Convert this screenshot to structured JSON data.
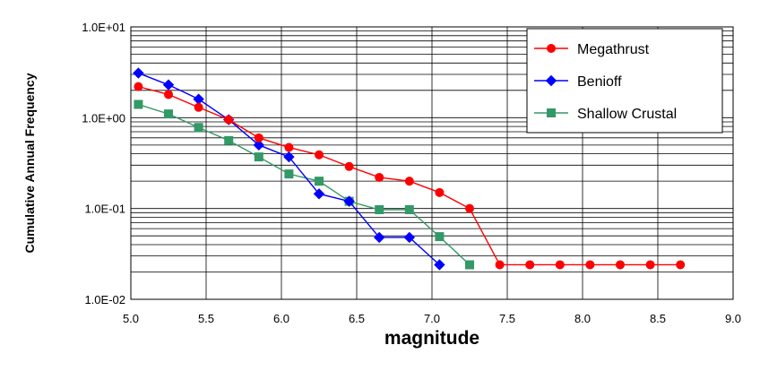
{
  "chart_data": {
    "type": "line",
    "title": "",
    "xlabel": "magnitude",
    "ylabel": "Cumulative Annual Frequency",
    "xlim": [
      5.0,
      9.0
    ],
    "ylim": [
      0.01,
      10
    ],
    "yscale": "log",
    "grid": true,
    "legend_position": "top-right",
    "x_ticks": [
      "5.0",
      "5.5",
      "6.0",
      "6.5",
      "7.0",
      "7.5",
      "8.0",
      "8.5",
      "9.0"
    ],
    "y_ticks": [
      "1.0E+01",
      "1.0E+00",
      "1.0E-01",
      "1.0E-02"
    ],
    "series": [
      {
        "name": "Megathrust",
        "color": "#ff0000",
        "marker": "circle",
        "x": [
          5.05,
          5.25,
          5.45,
          5.65,
          5.85,
          6.05,
          6.25,
          6.45,
          6.65,
          6.85,
          7.05,
          7.25,
          7.45,
          7.65,
          7.85,
          8.05,
          8.25,
          8.45,
          8.65
        ],
        "y": [
          2.2,
          1.8,
          1.3,
          0.95,
          0.6,
          0.47,
          0.39,
          0.29,
          0.22,
          0.2,
          0.15,
          0.1,
          0.024,
          0.024,
          0.024,
          0.024,
          0.024,
          0.024,
          0.024
        ]
      },
      {
        "name": "Benioff",
        "color": "#0000ff",
        "marker": "diamond",
        "x": [
          5.05,
          5.25,
          5.45,
          5.65,
          5.85,
          6.05,
          6.25,
          6.45,
          6.65,
          6.85,
          7.05
        ],
        "y": [
          3.1,
          2.3,
          1.6,
          0.95,
          0.5,
          0.37,
          0.145,
          0.12,
          0.048,
          0.048,
          0.024
        ]
      },
      {
        "name": "Shallow Crustal",
        "color": "#339966",
        "marker": "square",
        "x": [
          5.05,
          5.25,
          5.45,
          5.65,
          5.85,
          6.05,
          6.25,
          6.45,
          6.65,
          6.85,
          7.05,
          7.25
        ],
        "y": [
          1.4,
          1.1,
          0.78,
          0.56,
          0.37,
          0.24,
          0.2,
          0.12,
          0.097,
          0.097,
          0.049,
          0.024
        ]
      }
    ]
  }
}
